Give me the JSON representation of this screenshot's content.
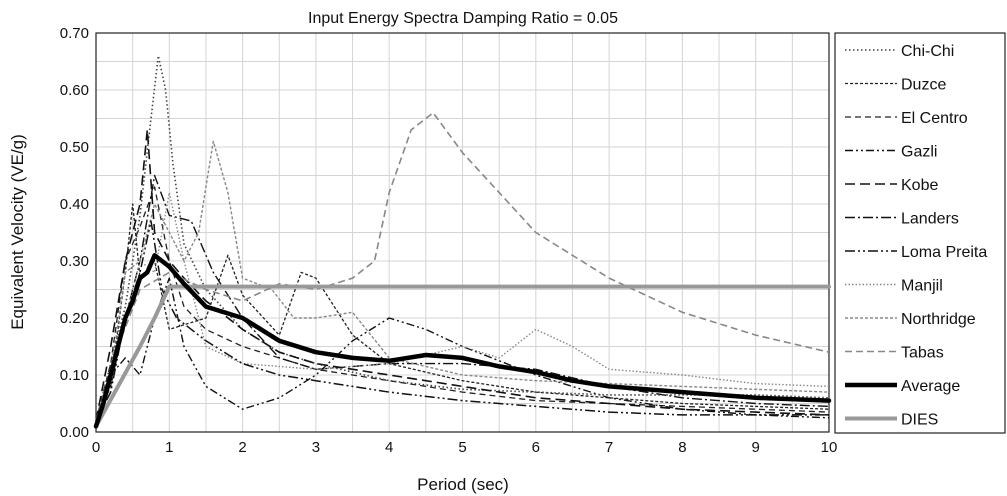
{
  "chart_data": {
    "type": "line",
    "title": "Input Energy Spectra Damping Ratio = 0.05",
    "xlabel": "Period (sec)",
    "ylabel": "Equivalent Velocity (VE/g)",
    "xlim": [
      0,
      10
    ],
    "ylim": [
      0,
      0.7
    ],
    "x_ticks": [
      "0",
      "1",
      "2",
      "3",
      "4",
      "5",
      "6",
      "7",
      "8",
      "9",
      "10"
    ],
    "y_ticks": [
      "0.00",
      "0.10",
      "0.20",
      "0.30",
      "0.40",
      "0.50",
      "0.60",
      "0.70"
    ],
    "x_tick_values": [
      0,
      1,
      2,
      3,
      4,
      5,
      6,
      7,
      8,
      9,
      10
    ],
    "y_tick_values": [
      0,
      0.1,
      0.2,
      0.3,
      0.4,
      0.5,
      0.6,
      0.7
    ],
    "grid": true,
    "legend_position": "right",
    "series": [
      {
        "name": "Chi-Chi",
        "color": "#444444",
        "dash": "1.5,2.5",
        "width": 1.6,
        "points": [
          [
            0,
            0.02
          ],
          [
            0.2,
            0.12
          ],
          [
            0.4,
            0.22
          ],
          [
            0.6,
            0.38
          ],
          [
            0.75,
            0.55
          ],
          [
            0.85,
            0.66
          ],
          [
            0.95,
            0.6
          ],
          [
            1.05,
            0.47
          ],
          [
            1.2,
            0.33
          ],
          [
            1.5,
            0.25
          ],
          [
            2,
            0.18
          ],
          [
            2.5,
            0.14
          ],
          [
            3,
            0.12
          ],
          [
            4,
            0.09
          ],
          [
            5,
            0.075
          ],
          [
            6,
            0.07
          ],
          [
            7,
            0.065
          ],
          [
            8,
            0.065
          ],
          [
            9,
            0.065
          ],
          [
            10,
            0.06
          ]
        ]
      },
      {
        "name": "Duzce",
        "color": "#222222",
        "dash": "3,2",
        "width": 1.3,
        "points": [
          [
            0,
            0.02
          ],
          [
            0.2,
            0.08
          ],
          [
            0.4,
            0.28
          ],
          [
            0.5,
            0.4
          ],
          [
            0.6,
            0.27
          ],
          [
            0.8,
            0.3
          ],
          [
            1,
            0.18
          ],
          [
            1.5,
            0.2
          ],
          [
            1.8,
            0.31
          ],
          [
            2,
            0.24
          ],
          [
            2.5,
            0.17
          ],
          [
            2.8,
            0.28
          ],
          [
            3,
            0.27
          ],
          [
            3.5,
            0.17
          ],
          [
            4,
            0.12
          ],
          [
            5,
            0.09
          ],
          [
            6,
            0.07
          ],
          [
            7,
            0.06
          ],
          [
            8,
            0.05
          ],
          [
            9,
            0.045
          ],
          [
            10,
            0.04
          ]
        ]
      },
      {
        "name": "El Centro",
        "color": "#222222",
        "dash": "6,4",
        "width": 1.3,
        "points": [
          [
            0,
            0.02
          ],
          [
            0.2,
            0.12
          ],
          [
            0.4,
            0.3
          ],
          [
            0.6,
            0.36
          ],
          [
            0.8,
            0.43
          ],
          [
            1,
            0.3
          ],
          [
            1.2,
            0.22
          ],
          [
            1.5,
            0.18
          ],
          [
            2,
            0.15
          ],
          [
            3,
            0.11
          ],
          [
            4,
            0.09
          ],
          [
            5,
            0.07
          ],
          [
            6,
            0.055
          ],
          [
            7,
            0.05
          ],
          [
            8,
            0.045
          ],
          [
            9,
            0.04
          ],
          [
            10,
            0.035
          ]
        ]
      },
      {
        "name": "Gazli",
        "color": "#111111",
        "dash": "8,3,2,3,2,3",
        "width": 1.4,
        "points": [
          [
            0,
            0.02
          ],
          [
            0.2,
            0.1
          ],
          [
            0.4,
            0.13
          ],
          [
            0.6,
            0.1
          ],
          [
            0.8,
            0.2
          ],
          [
            1,
            0.27
          ],
          [
            1.2,
            0.15
          ],
          [
            1.5,
            0.08
          ],
          [
            2,
            0.04
          ],
          [
            2.5,
            0.06
          ],
          [
            3,
            0.1
          ],
          [
            3.5,
            0.16
          ],
          [
            4,
            0.2
          ],
          [
            4.5,
            0.18
          ],
          [
            5,
            0.15
          ],
          [
            6,
            0.1
          ],
          [
            7,
            0.06
          ],
          [
            8,
            0.04
          ],
          [
            9,
            0.03
          ],
          [
            10,
            0.025
          ]
        ]
      },
      {
        "name": "Kobe",
        "color": "#111111",
        "dash": "10,5",
        "width": 1.6,
        "points": [
          [
            0,
            0.02
          ],
          [
            0.2,
            0.15
          ],
          [
            0.4,
            0.3
          ],
          [
            0.6,
            0.4
          ],
          [
            0.7,
            0.53
          ],
          [
            0.8,
            0.35
          ],
          [
            1,
            0.3
          ],
          [
            1.2,
            0.27
          ],
          [
            1.5,
            0.23
          ],
          [
            2,
            0.18
          ],
          [
            2.5,
            0.14
          ],
          [
            3,
            0.12
          ],
          [
            4,
            0.1
          ],
          [
            5,
            0.08
          ],
          [
            6,
            0.06
          ],
          [
            7,
            0.05
          ],
          [
            8,
            0.04
          ],
          [
            9,
            0.035
          ],
          [
            10,
            0.03
          ]
        ]
      },
      {
        "name": "Landers",
        "color": "#111111",
        "dash": "10,3,2,3",
        "width": 1.4,
        "points": [
          [
            0,
            0.02
          ],
          [
            0.2,
            0.08
          ],
          [
            0.4,
            0.2
          ],
          [
            0.6,
            0.3
          ],
          [
            0.8,
            0.45
          ],
          [
            1,
            0.38
          ],
          [
            1.3,
            0.37
          ],
          [
            1.6,
            0.28
          ],
          [
            2,
            0.2
          ],
          [
            2.5,
            0.13
          ],
          [
            3,
            0.11
          ],
          [
            4,
            0.12
          ],
          [
            5,
            0.12
          ],
          [
            6,
            0.11
          ],
          [
            7,
            0.08
          ],
          [
            8,
            0.06
          ],
          [
            9,
            0.05
          ],
          [
            10,
            0.045
          ]
        ]
      },
      {
        "name": "Loma Preita",
        "color": "#111111",
        "dash": "10,3,2,3,2,3",
        "width": 1.5,
        "points": [
          [
            0,
            0.02
          ],
          [
            0.2,
            0.07
          ],
          [
            0.4,
            0.2
          ],
          [
            0.6,
            0.28
          ],
          [
            0.75,
            0.37
          ],
          [
            0.9,
            0.25
          ],
          [
            1.1,
            0.2
          ],
          [
            1.5,
            0.16
          ],
          [
            2,
            0.12
          ],
          [
            2.5,
            0.1
          ],
          [
            3,
            0.09
          ],
          [
            4,
            0.07
          ],
          [
            5,
            0.055
          ],
          [
            6,
            0.045
          ],
          [
            7,
            0.035
          ],
          [
            8,
            0.03
          ],
          [
            9,
            0.03
          ],
          [
            10,
            0.03
          ]
        ]
      },
      {
        "name": "Manjil",
        "color": "#888888",
        "dash": "1.5,2",
        "width": 1.4,
        "points": [
          [
            0,
            0.02
          ],
          [
            0.2,
            0.08
          ],
          [
            0.4,
            0.2
          ],
          [
            0.6,
            0.3
          ],
          [
            0.8,
            0.28
          ],
          [
            1,
            0.42
          ],
          [
            1.2,
            0.3
          ],
          [
            1.5,
            0.15
          ],
          [
            2,
            0.12
          ],
          [
            3,
            0.11
          ],
          [
            4,
            0.12
          ],
          [
            5,
            0.15
          ],
          [
            5.5,
            0.13
          ],
          [
            6,
            0.18
          ],
          [
            6.5,
            0.15
          ],
          [
            7,
            0.11
          ],
          [
            8,
            0.1
          ],
          [
            9,
            0.085
          ],
          [
            10,
            0.08
          ]
        ]
      },
      {
        "name": "Northridge",
        "color": "#888888",
        "dash": "3,2",
        "width": 1.4,
        "points": [
          [
            0,
            0.02
          ],
          [
            0.2,
            0.1
          ],
          [
            0.4,
            0.28
          ],
          [
            0.6,
            0.3
          ],
          [
            0.8,
            0.4
          ],
          [
            1,
            0.35
          ],
          [
            1.2,
            0.3
          ],
          [
            1.4,
            0.35
          ],
          [
            1.6,
            0.51
          ],
          [
            1.8,
            0.42
          ],
          [
            2,
            0.27
          ],
          [
            2.4,
            0.25
          ],
          [
            2.7,
            0.2
          ],
          [
            3,
            0.2
          ],
          [
            3.5,
            0.21
          ],
          [
            4,
            0.13
          ],
          [
            5,
            0.1
          ],
          [
            6,
            0.09
          ],
          [
            7,
            0.085
          ],
          [
            8,
            0.08
          ],
          [
            9,
            0.075
          ],
          [
            10,
            0.07
          ]
        ]
      },
      {
        "name": "Tabas",
        "color": "#888888",
        "dash": "7,4",
        "width": 1.6,
        "points": [
          [
            0,
            0.02
          ],
          [
            0.3,
            0.15
          ],
          [
            0.6,
            0.25
          ],
          [
            1,
            0.28
          ],
          [
            1.5,
            0.25
          ],
          [
            2,
            0.23
          ],
          [
            2.5,
            0.26
          ],
          [
            3,
            0.25
          ],
          [
            3.5,
            0.27
          ],
          [
            3.8,
            0.3
          ],
          [
            4,
            0.42
          ],
          [
            4.3,
            0.53
          ],
          [
            4.6,
            0.56
          ],
          [
            5,
            0.49
          ],
          [
            5.5,
            0.42
          ],
          [
            6,
            0.35
          ],
          [
            7,
            0.27
          ],
          [
            8,
            0.21
          ],
          [
            9,
            0.17
          ],
          [
            10,
            0.14
          ]
        ]
      },
      {
        "name": "Average",
        "color": "#000000",
        "dash": "",
        "width": 4.5,
        "points": [
          [
            0,
            0.01
          ],
          [
            0.1,
            0.05
          ],
          [
            0.2,
            0.1
          ],
          [
            0.3,
            0.15
          ],
          [
            0.4,
            0.2
          ],
          [
            0.5,
            0.23
          ],
          [
            0.6,
            0.27
          ],
          [
            0.7,
            0.28
          ],
          [
            0.8,
            0.31
          ],
          [
            0.9,
            0.3
          ],
          [
            1,
            0.29
          ],
          [
            1.2,
            0.26
          ],
          [
            1.5,
            0.22
          ],
          [
            2,
            0.2
          ],
          [
            2.5,
            0.16
          ],
          [
            3,
            0.14
          ],
          [
            3.5,
            0.13
          ],
          [
            4,
            0.125
          ],
          [
            4.5,
            0.135
          ],
          [
            5,
            0.13
          ],
          [
            5.5,
            0.115
          ],
          [
            6,
            0.105
          ],
          [
            6.5,
            0.09
          ],
          [
            7,
            0.08
          ],
          [
            8,
            0.07
          ],
          [
            9,
            0.06
          ],
          [
            10,
            0.055
          ]
        ]
      },
      {
        "name": "DIES",
        "color": "#999999",
        "dash": "",
        "width": 4,
        "points": [
          [
            0,
            0.01
          ],
          [
            0.3,
            0.08
          ],
          [
            0.6,
            0.15
          ],
          [
            0.8,
            0.2
          ],
          [
            1,
            0.255
          ],
          [
            10,
            0.255
          ]
        ]
      }
    ]
  }
}
